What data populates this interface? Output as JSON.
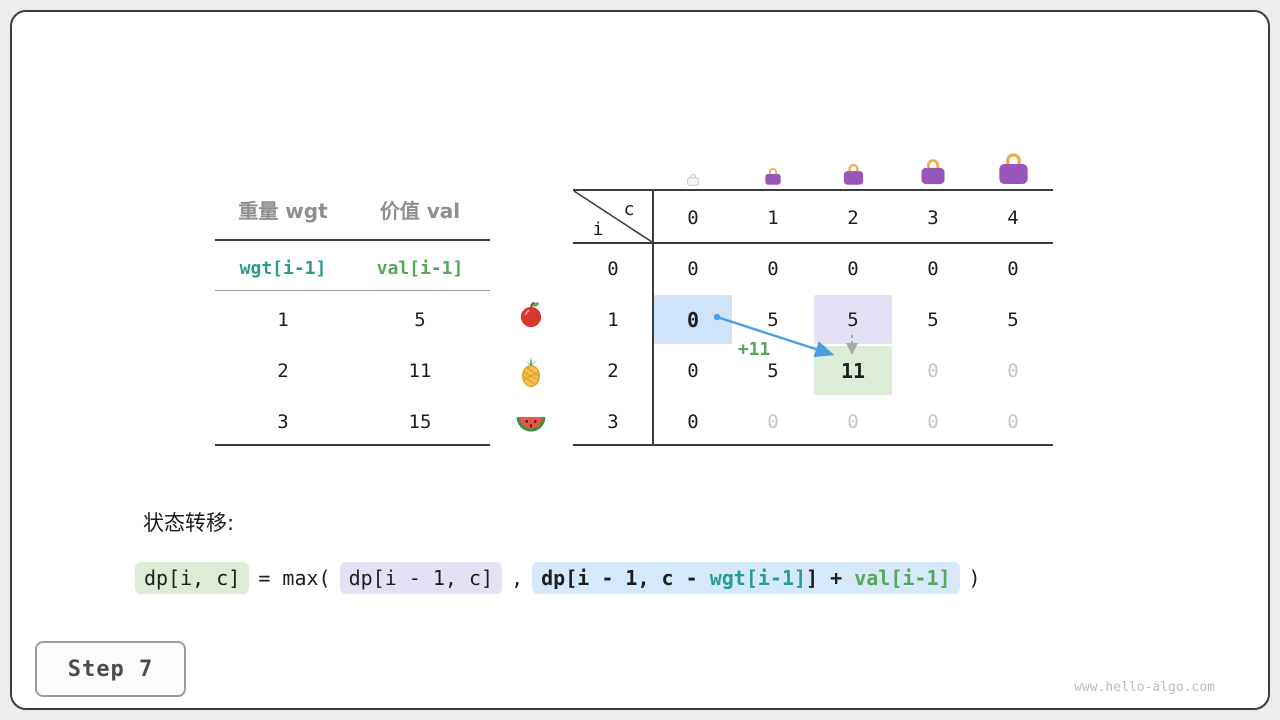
{
  "meta": {
    "step_label": "Step 7",
    "watermark": "www.hello-algo.com"
  },
  "item_table": {
    "col1_header": "重量 wgt",
    "col2_header": "价值 val",
    "formula_row": {
      "wgt": "wgt[i-1]",
      "val": "val[i-1]"
    },
    "rows": [
      {
        "wgt": "1",
        "val": "5",
        "icon": "apple"
      },
      {
        "wgt": "2",
        "val": "11",
        "icon": "pineapple"
      },
      {
        "wgt": "3",
        "val": "15",
        "icon": "watermelon"
      }
    ]
  },
  "dp_table": {
    "corner_col_label": "c",
    "corner_row_label": "i",
    "col_headers": [
      "0",
      "1",
      "2",
      "3",
      "4"
    ],
    "row_headers": [
      "0",
      "1",
      "2",
      "3"
    ],
    "cells": [
      [
        "0",
        "0",
        "0",
        "0",
        "0"
      ],
      [
        "0",
        "5",
        "5",
        "5",
        "5"
      ],
      [
        "0",
        "5",
        "11",
        "0",
        "0"
      ],
      [
        "0",
        "0",
        "0",
        "0",
        "0"
      ]
    ],
    "faded_cells": [
      [
        2,
        3
      ],
      [
        2,
        4
      ],
      [
        3,
        1
      ],
      [
        3,
        2
      ],
      [
        3,
        3
      ],
      [
        3,
        4
      ]
    ],
    "bold_cells": [
      [
        1,
        0
      ],
      [
        2,
        2
      ]
    ],
    "highlights": [
      {
        "row": 1,
        "col": 0,
        "color": "highlight_blue"
      },
      {
        "row": 1,
        "col": 2,
        "color": "highlight_lavender"
      },
      {
        "row": 2,
        "col": 2,
        "color": "highlight_green"
      }
    ],
    "arrow_annotation": "+11",
    "bag_columns": [
      0,
      1,
      2,
      3,
      4
    ]
  },
  "transition": {
    "label": "状态转移:",
    "lhs": "dp[i, c]",
    "equals": "= max(",
    "option1": "dp[i - 1, c]",
    "separator": ",",
    "option2_prefix": "dp[i - 1, c - ",
    "option2_wgt": "wgt[i-1]",
    "option2_mid": "] + ",
    "option2_val": "val[i-1]",
    "closing": ")"
  },
  "colors": {
    "wgt_accent": "#2a9d8f",
    "val_accent": "#57a65a",
    "arrow_blue": "#4b9fe0",
    "gray_arrow": "#a8a8a8",
    "faded_text": "#c6c6c6",
    "highlight_blue": "#cfe4f8",
    "highlight_lavender": "#e3e2f5",
    "highlight_green": "#dcecd7",
    "chip_blue": "#d5e9fa",
    "bag_body": "#9856bb",
    "bag_handle": "#f0ad4e"
  }
}
